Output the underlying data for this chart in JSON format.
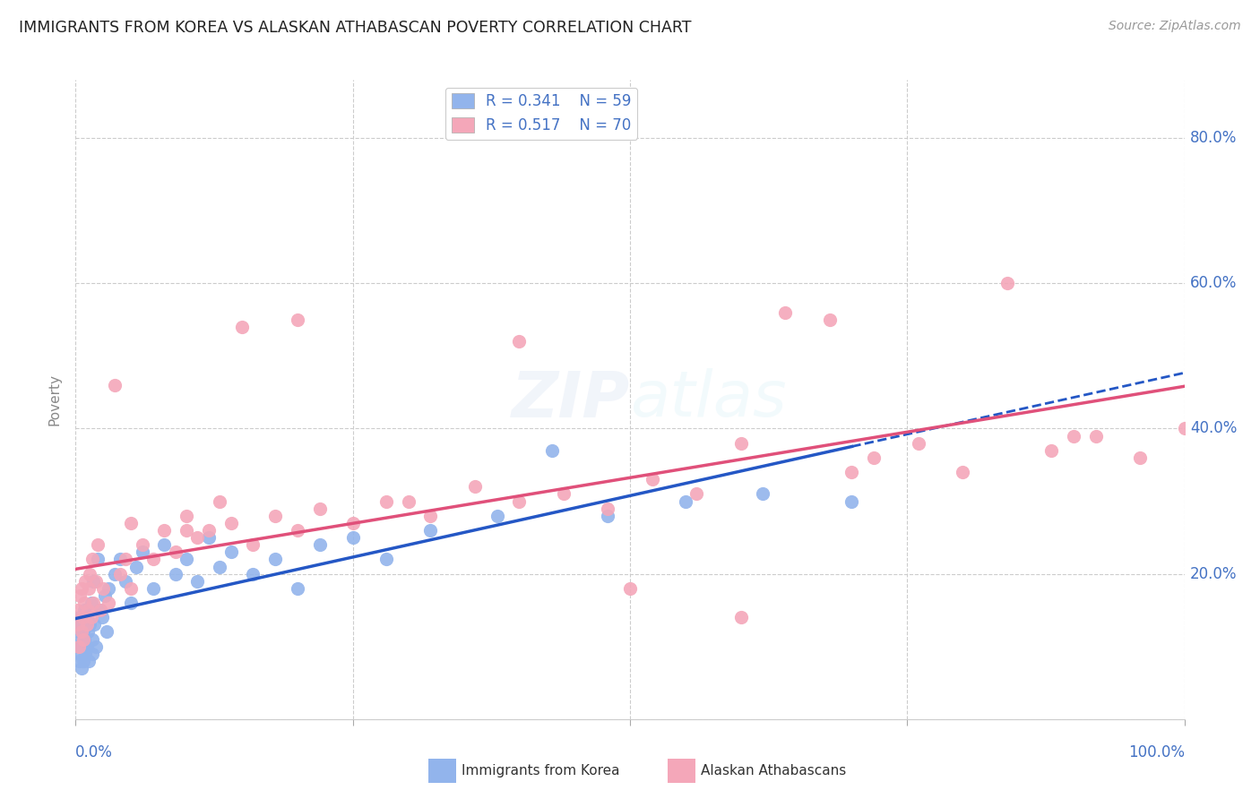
{
  "title": "IMMIGRANTS FROM KOREA VS ALASKAN ATHABASCAN POVERTY CORRELATION CHART",
  "source": "Source: ZipAtlas.com",
  "ylabel": "Poverty",
  "series1_label": "Immigrants from Korea",
  "series1_color": "#92B4EC",
  "series1_line_color": "#2457C5",
  "series1_R": 0.341,
  "series1_N": 59,
  "series2_label": "Alaskan Athabascans",
  "series2_color": "#F4A7B9",
  "series2_line_color": "#E0507A",
  "series2_R": 0.517,
  "series2_N": 70,
  "background_color": "#ffffff",
  "grid_color": "#cccccc",
  "title_color": "#222222",
  "axis_label_color": "#4472C4",
  "yticks": [
    0.0,
    0.2,
    0.4,
    0.6,
    0.8
  ],
  "ytick_labels": [
    "",
    "20.0%",
    "40.0%",
    "60.0%",
    "80.0%"
  ],
  "xlim": [
    0.0,
    1.0
  ],
  "ylim": [
    0.0,
    0.88
  ],
  "korea_x": [
    0.001,
    0.002,
    0.003,
    0.003,
    0.004,
    0.004,
    0.005,
    0.005,
    0.006,
    0.006,
    0.007,
    0.007,
    0.008,
    0.008,
    0.009,
    0.01,
    0.01,
    0.011,
    0.012,
    0.013,
    0.014,
    0.015,
    0.015,
    0.016,
    0.017,
    0.018,
    0.02,
    0.022,
    0.024,
    0.026,
    0.028,
    0.03,
    0.035,
    0.04,
    0.045,
    0.05,
    0.055,
    0.06,
    0.07,
    0.08,
    0.09,
    0.1,
    0.11,
    0.12,
    0.13,
    0.14,
    0.16,
    0.18,
    0.2,
    0.22,
    0.25,
    0.28,
    0.32,
    0.38,
    0.43,
    0.48,
    0.55,
    0.62,
    0.7
  ],
  "korea_y": [
    0.13,
    0.1,
    0.08,
    0.12,
    0.09,
    0.14,
    0.07,
    0.11,
    0.1,
    0.13,
    0.08,
    0.12,
    0.11,
    0.15,
    0.09,
    0.1,
    0.14,
    0.12,
    0.08,
    0.13,
    0.16,
    0.09,
    0.11,
    0.19,
    0.13,
    0.1,
    0.22,
    0.15,
    0.14,
    0.17,
    0.12,
    0.18,
    0.2,
    0.22,
    0.19,
    0.16,
    0.21,
    0.23,
    0.18,
    0.24,
    0.2,
    0.22,
    0.19,
    0.25,
    0.21,
    0.23,
    0.2,
    0.22,
    0.18,
    0.24,
    0.25,
    0.22,
    0.26,
    0.28,
    0.37,
    0.28,
    0.3,
    0.31,
    0.3
  ],
  "alaska_x": [
    0.001,
    0.002,
    0.003,
    0.004,
    0.005,
    0.005,
    0.006,
    0.007,
    0.008,
    0.009,
    0.01,
    0.011,
    0.012,
    0.013,
    0.014,
    0.015,
    0.016,
    0.018,
    0.02,
    0.022,
    0.025,
    0.03,
    0.035,
    0.04,
    0.045,
    0.05,
    0.06,
    0.07,
    0.08,
    0.09,
    0.1,
    0.11,
    0.12,
    0.13,
    0.14,
    0.16,
    0.18,
    0.2,
    0.22,
    0.25,
    0.28,
    0.32,
    0.36,
    0.4,
    0.44,
    0.48,
    0.52,
    0.56,
    0.6,
    0.64,
    0.68,
    0.72,
    0.76,
    0.8,
    0.84,
    0.88,
    0.92,
    0.96,
    1.0,
    0.05,
    0.1,
    0.15,
    0.2,
    0.3,
    0.4,
    0.5,
    0.6,
    0.7,
    0.9
  ],
  "alaska_y": [
    0.15,
    0.13,
    0.1,
    0.17,
    0.12,
    0.18,
    0.14,
    0.11,
    0.16,
    0.19,
    0.13,
    0.15,
    0.18,
    0.2,
    0.14,
    0.22,
    0.16,
    0.19,
    0.24,
    0.15,
    0.18,
    0.16,
    0.46,
    0.2,
    0.22,
    0.18,
    0.24,
    0.22,
    0.26,
    0.23,
    0.28,
    0.25,
    0.26,
    0.3,
    0.27,
    0.24,
    0.28,
    0.26,
    0.29,
    0.27,
    0.3,
    0.28,
    0.32,
    0.3,
    0.31,
    0.29,
    0.33,
    0.31,
    0.14,
    0.56,
    0.55,
    0.36,
    0.38,
    0.34,
    0.6,
    0.37,
    0.39,
    0.36,
    0.4,
    0.27,
    0.26,
    0.54,
    0.55,
    0.3,
    0.52,
    0.18,
    0.38,
    0.34,
    0.39
  ]
}
